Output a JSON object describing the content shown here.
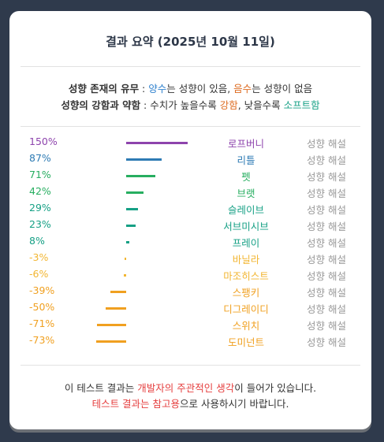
{
  "header": {
    "title": "결과 요약 (2025년 10월 11일)"
  },
  "intro": [
    [
      {
        "text": "성향 존재의 유무",
        "bold": true
      },
      {
        "text": " : "
      },
      {
        "text": "양수",
        "color": "#3182ce"
      },
      {
        "text": "는 성향이 있음, "
      },
      {
        "text": "음수",
        "color": "#dd6b20"
      },
      {
        "text": "는 성향이 없음"
      }
    ],
    [
      {
        "text": "성향의 강함과 약함",
        "bold": true
      },
      {
        "text": " : 수치가 높을수록 "
      },
      {
        "text": "강함",
        "color": "#dd6b20"
      },
      {
        "text": ", 낮을수록 "
      },
      {
        "text": "소프트함",
        "color": "#16a085"
      }
    ]
  ],
  "rows": [
    {
      "label": "150%",
      "value": 150,
      "name": "로프버니",
      "link": "성향 해설",
      "color": "#8e44ad"
    },
    {
      "label": "87%",
      "value": 87,
      "name": "리틀",
      "link": "성향 해설",
      "color": "#2e7bb4"
    },
    {
      "label": "71%",
      "value": 71,
      "name": "펫",
      "link": "성향 해설",
      "color": "#27ae60"
    },
    {
      "label": "42%",
      "value": 42,
      "name": "브랫",
      "link": "성향 해설",
      "color": "#27ae60"
    },
    {
      "label": "29%",
      "value": 29,
      "name": "슬레이브",
      "link": "성향 해설",
      "color": "#16a085"
    },
    {
      "label": "23%",
      "value": 23,
      "name": "서브미시브",
      "link": "성향 해설",
      "color": "#16a085"
    },
    {
      "label": "8%",
      "value": 8,
      "name": "프레이",
      "link": "성향 해설",
      "color": "#16a085"
    },
    {
      "label": "-3%",
      "value": -3,
      "name": "바닐라",
      "link": "성향 해설",
      "color": "#f2b632"
    },
    {
      "label": "-6%",
      "value": -6,
      "name": "마조히스트",
      "link": "성향 해설",
      "color": "#f2b632"
    },
    {
      "label": "-39%",
      "value": -39,
      "name": "스팽키",
      "link": "성향 해설",
      "color": "#f0a020"
    },
    {
      "label": "-50%",
      "value": -50,
      "name": "디그레이디",
      "link": "성향 해설",
      "color": "#f0a020"
    },
    {
      "label": "-71%",
      "value": -71,
      "name": "스위치",
      "link": "성향 해설",
      "color": "#f0a020"
    },
    {
      "label": "-73%",
      "value": -73,
      "name": "도미넌트",
      "link": "성향 해설",
      "color": "#f0a020"
    }
  ],
  "footer": [
    [
      {
        "text": "이 테스트 결과는 "
      },
      {
        "text": "개발자의 주관적인 생각",
        "color": "#e53e3e"
      },
      {
        "text": "이 들어가 있습니다."
      }
    ],
    [
      {
        "text": "테스트 결과는 참고용",
        "color": "#e53e3e"
      },
      {
        "text": "으로 사용하시기 바랍니다."
      }
    ]
  ]
}
